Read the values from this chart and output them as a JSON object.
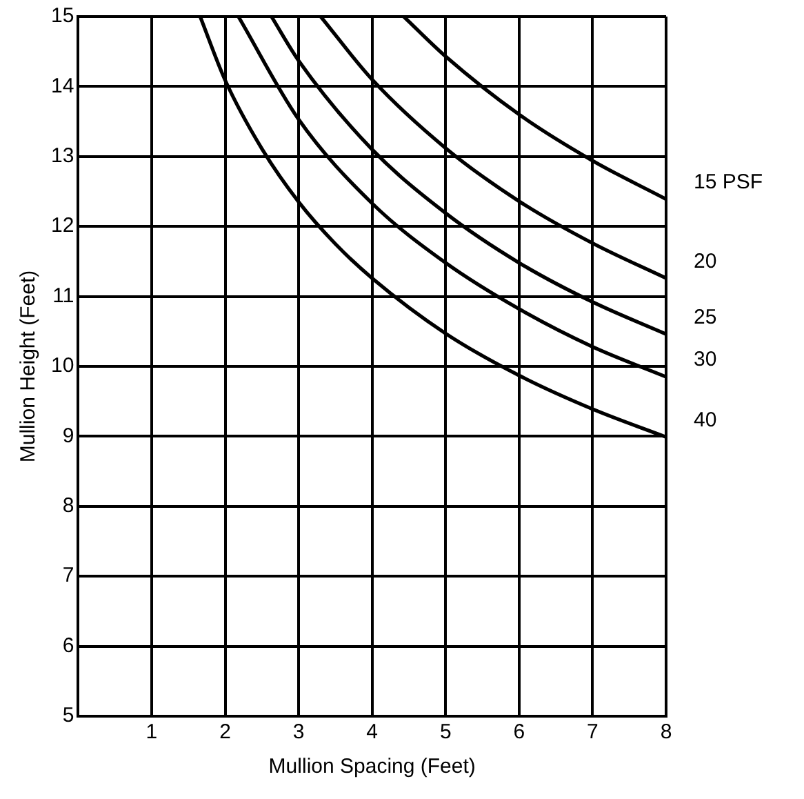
{
  "chart_data": {
    "type": "line",
    "xlabel": "Mullion Spacing (Feet)",
    "ylabel": "Mullion Height (Feet)",
    "xlim": [
      0,
      8
    ],
    "xticks": [
      1,
      2,
      3,
      4,
      5,
      6,
      7,
      8
    ],
    "ylim": [
      5,
      15
    ],
    "yticks": [
      5,
      6,
      7,
      8,
      9,
      10,
      11,
      12,
      13,
      14,
      15
    ],
    "grid": true,
    "legend": false,
    "marker": "none",
    "line_style": "solid",
    "series": [
      {
        "name": "15 PSF",
        "color": "#000000",
        "x": [
          4.43,
          5,
          6,
          7,
          8
        ],
        "values": [
          15,
          14.43,
          13.6,
          12.94,
          12.39
        ]
      },
      {
        "name": "20",
        "color": "#000000",
        "x": [
          3.3,
          4,
          5,
          6,
          7,
          8
        ],
        "values": [
          15,
          14.1,
          13.12,
          12.36,
          11.76,
          11.26
        ]
      },
      {
        "name": "25",
        "color": "#000000",
        "x": [
          2.63,
          3,
          4,
          5,
          6,
          7,
          8
        ],
        "values": [
          15,
          14.37,
          13.1,
          12.19,
          11.48,
          10.92,
          10.46
        ]
      },
      {
        "name": "30",
        "color": "#000000",
        "x": [
          2.18,
          3,
          4,
          5,
          6,
          7,
          8
        ],
        "values": [
          15,
          13.53,
          12.33,
          11.48,
          10.82,
          10.28,
          9.85
        ]
      },
      {
        "name": "40",
        "color": "#000000",
        "x": [
          1.66,
          2,
          2.5,
          3,
          3.5,
          4,
          5,
          6,
          7,
          8
        ],
        "values": [
          15,
          14.09,
          13.11,
          12.35,
          11.75,
          11.26,
          10.47,
          9.87,
          9.39,
          8.99
        ]
      }
    ]
  }
}
